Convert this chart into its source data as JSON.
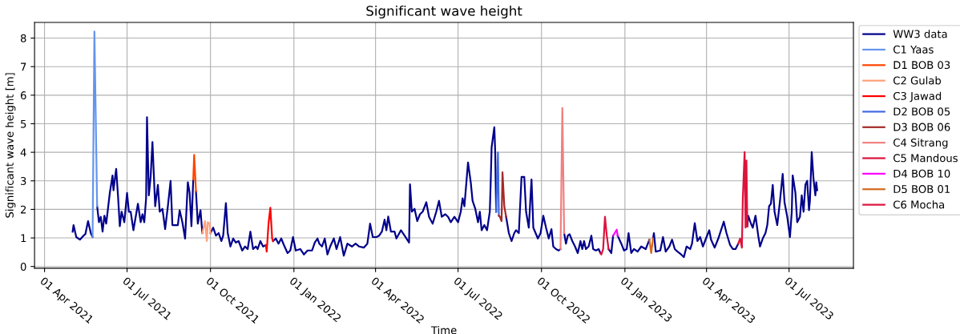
{
  "chart_data": {
    "type": "line",
    "title": "Significant wave height",
    "xlabel": "Time",
    "ylabel": "Significant wave height [m]",
    "xlim": [
      "2021-03-21",
      "2023-09-10"
    ],
    "ylim": [
      -0.06,
      8.55
    ],
    "xticks": [
      {
        "value": "2021-04-01",
        "label": "01 Apr 2021"
      },
      {
        "value": "2021-07-01",
        "label": "01 Jul 2021"
      },
      {
        "value": "2021-10-01",
        "label": "01 Oct 2021"
      },
      {
        "value": "2022-01-01",
        "label": "01 Jan 2022"
      },
      {
        "value": "2022-04-01",
        "label": "01 Apr 2022"
      },
      {
        "value": "2022-07-01",
        "label": "01 Jul 2022"
      },
      {
        "value": "2022-10-01",
        "label": "01 Oct 2022"
      },
      {
        "value": "2023-01-01",
        "label": "01 Jan 2023"
      },
      {
        "value": "2023-04-01",
        "label": "01 Apr 2023"
      },
      {
        "value": "2023-07-01",
        "label": "01 Jul 2023"
      }
    ],
    "yticks": [
      0,
      1,
      2,
      3,
      4,
      5,
      6,
      7,
      8
    ],
    "grid": true,
    "legend": "right",
    "series": [
      {
        "name": "WW3 data",
        "color": "#00008b",
        "x": [
          "2021-05-02",
          "2021-05-03",
          "2021-05-06",
          "2021-05-10",
          "2021-05-14",
          "2021-05-16",
          "2021-05-19",
          "2021-05-22",
          "2021-05-24",
          "2021-05-26",
          "2021-05-29",
          "2021-05-31",
          "2021-06-02",
          "2021-06-04",
          "2021-06-06",
          "2021-06-08",
          "2021-06-12",
          "2021-06-15",
          "2021-06-16",
          "2021-06-19",
          "2021-06-21",
          "2021-06-23",
          "2021-06-25",
          "2021-06-28",
          "2021-07-01",
          "2021-07-03",
          "2021-07-05",
          "2021-07-08",
          "2021-07-11",
          "2021-07-13",
          "2021-07-16",
          "2021-07-18",
          "2021-07-20",
          "2021-07-22",
          "2021-07-23",
          "2021-07-25",
          "2021-07-27",
          "2021-07-29",
          "2021-08-01",
          "2021-08-04",
          "2021-08-06",
          "2021-08-09",
          "2021-08-12",
          "2021-08-15",
          "2021-08-18",
          "2021-08-20",
          "2021-08-23",
          "2021-08-26",
          "2021-08-28",
          "2021-08-31",
          "2021-09-03",
          "2021-09-06",
          "2021-09-08",
          "2021-09-10",
          "2021-09-12",
          "2021-09-13",
          "2021-09-15",
          "2021-09-17",
          "2021-09-20",
          "2021-09-22",
          "2021-09-26",
          "2021-10-01",
          "2021-10-04",
          "2021-10-07",
          "2021-10-10",
          "2021-10-13",
          "2021-10-15",
          "2021-10-18",
          "2021-10-20",
          "2021-10-23",
          "2021-10-26",
          "2021-10-29",
          "2021-11-01",
          "2021-11-05",
          "2021-11-08",
          "2021-11-11",
          "2021-11-14",
          "2021-11-17",
          "2021-11-20",
          "2021-11-22",
          "2021-11-25",
          "2021-11-28",
          "2021-12-01",
          "2021-12-05",
          "2021-12-09",
          "2021-12-12",
          "2021-12-15",
          "2021-12-18",
          "2021-12-21",
          "2021-12-25",
          "2021-12-28",
          "2021-12-31",
          "2022-01-03",
          "2022-01-08",
          "2022-01-12",
          "2022-01-16",
          "2022-01-21",
          "2022-01-24",
          "2022-01-27",
          "2022-01-29",
          "2022-02-01",
          "2022-02-04",
          "2022-02-07",
          "2022-02-10",
          "2022-02-14",
          "2022-02-17",
          "2022-02-21",
          "2022-02-25",
          "2022-03-01",
          "2022-03-06",
          "2022-03-10",
          "2022-03-14",
          "2022-03-19",
          "2022-03-23",
          "2022-03-26",
          "2022-03-29",
          "2022-04-02",
          "2022-04-05",
          "2022-04-08",
          "2022-04-11",
          "2022-04-13",
          "2022-04-15",
          "2022-04-18",
          "2022-04-22",
          "2022-04-24",
          "2022-04-29",
          "2022-05-03",
          "2022-05-08",
          "2022-05-09",
          "2022-05-11",
          "2022-05-14",
          "2022-05-17",
          "2022-05-20",
          "2022-05-23",
          "2022-05-27",
          "2022-05-30",
          "2022-06-03",
          "2022-06-07",
          "2022-06-10",
          "2022-06-13",
          "2022-06-17",
          "2022-06-20",
          "2022-06-23",
          "2022-06-27",
          "2022-07-01",
          "2022-07-04",
          "2022-07-06",
          "2022-07-08",
          "2022-07-12",
          "2022-07-15",
          "2022-07-17",
          "2022-07-20",
          "2022-07-23",
          "2022-07-25",
          "2022-07-27",
          "2022-07-30",
          "2022-08-02",
          "2022-08-05",
          "2022-08-06",
          "2022-08-07",
          "2022-08-10",
          "2022-08-11",
          "2022-08-12",
          "2022-08-16",
          "2022-08-23",
          "2022-08-26",
          "2022-08-29",
          "2022-09-01",
          "2022-09-03",
          "2022-09-06",
          "2022-09-09",
          "2022-09-12",
          "2022-09-14",
          "2022-09-17",
          "2022-09-20",
          "2022-09-22",
          "2022-09-27",
          "2022-09-30",
          "2022-10-03",
          "2022-10-06",
          "2022-10-09",
          "2022-10-12",
          "2022-10-14",
          "2022-10-17",
          "2022-10-20",
          "2022-10-22",
          "2022-10-24",
          "2022-10-26",
          "2022-10-28",
          "2022-10-30",
          "2022-11-01",
          "2022-11-04",
          "2022-11-07",
          "2022-11-10",
          "2022-11-13",
          "2022-11-15",
          "2022-11-17",
          "2022-11-19",
          "2022-11-22",
          "2022-11-25",
          "2022-11-27",
          "2022-11-30",
          "2022-12-03",
          "2022-12-05",
          "2022-12-09",
          "2022-12-14",
          "2022-12-17",
          "2022-12-19",
          "2022-12-21",
          "2022-12-24",
          "2022-12-28",
          "2022-12-31",
          "2023-01-03",
          "2023-01-05",
          "2023-01-08",
          "2023-01-11",
          "2023-01-15",
          "2023-01-19",
          "2023-01-24",
          "2023-01-28",
          "2023-01-30",
          "2023-02-01",
          "2023-02-02",
          "2023-02-04",
          "2023-02-09",
          "2023-02-12",
          "2023-02-15",
          "2023-02-19",
          "2023-02-22",
          "2023-02-25",
          "2023-02-28",
          "2023-03-04",
          "2023-03-07",
          "2023-03-10",
          "2023-03-14",
          "2023-03-16",
          "2023-03-19",
          "2023-03-22",
          "2023-03-25",
          "2023-03-28",
          "2023-04-01",
          "2023-04-04",
          "2023-04-06",
          "2023-04-10",
          "2023-04-14",
          "2023-04-17",
          "2023-04-20",
          "2023-04-23",
          "2023-04-27",
          "2023-04-30",
          "2023-05-03",
          "2023-05-06",
          "2023-05-10",
          "2023-05-16",
          "2023-05-17",
          "2023-05-20",
          "2023-05-22",
          "2023-05-25",
          "2023-05-28",
          "2023-05-30",
          "2023-06-02",
          "2023-06-05",
          "2023-06-07",
          "2023-06-09",
          "2023-06-11",
          "2023-06-13",
          "2023-06-15",
          "2023-06-18",
          "2023-06-21",
          "2023-06-24",
          "2023-06-26",
          "2023-06-29",
          "2023-07-02",
          "2023-07-04",
          "2023-07-05",
          "2023-07-08",
          "2023-07-10",
          "2023-07-13",
          "2023-07-15",
          "2023-07-17",
          "2023-07-19",
          "2023-07-21",
          "2023-07-23",
          "2023-07-24",
          "2023-07-26",
          "2023-07-28",
          "2023-07-30",
          "2023-07-31",
          "2023-08-01"
        ],
        "values": [
          1.22,
          1.45,
          1.03,
          0.94,
          1.08,
          1.13,
          1.59,
          1.17,
          1.03,
          null,
          2.11,
          1.55,
          1.74,
          1.22,
          1.78,
          1.5,
          2.58,
          3.19,
          2.67,
          3.42,
          2.49,
          1.41,
          1.92,
          1.55,
          2.58,
          1.92,
          1.92,
          1.27,
          1.83,
          2.2,
          1.55,
          1.83,
          1.55,
          2.39,
          5.23,
          2.49,
          3.14,
          4.36,
          2.11,
          2.86,
          1.92,
          2.02,
          1.31,
          2.11,
          3.0,
          1.45,
          1.45,
          1.45,
          1.97,
          1.55,
          0.98,
          2.95,
          2.58,
          1.41,
          3.05,
          null,
          2.63,
          1.5,
          1.97,
          1.17,
          null,
          1.17,
          1.36,
          1.08,
          1.17,
          0.89,
          1.08,
          2.22,
          1.17,
          0.7,
          0.98,
          0.84,
          0.89,
          0.56,
          0.7,
          0.61,
          1.22,
          0.61,
          0.7,
          0.61,
          0.89,
          0.7,
          0.75,
          null,
          0.89,
          0.98,
          0.8,
          0.98,
          0.75,
          0.47,
          0.56,
          1.03,
          0.56,
          0.61,
          0.42,
          0.56,
          0.56,
          0.84,
          0.98,
          0.8,
          0.7,
          0.98,
          0.42,
          0.7,
          0.98,
          0.61,
          1.03,
          0.38,
          0.8,
          0.7,
          0.8,
          0.7,
          0.66,
          0.8,
          1.5,
          1.03,
          1.03,
          1.08,
          1.22,
          1.64,
          1.27,
          1.75,
          1.22,
          1.22,
          0.98,
          1.27,
          1.08,
          0.84,
          2.88,
          1.92,
          2.02,
          1.59,
          1.83,
          1.92,
          2.25,
          1.74,
          1.5,
          1.92,
          2.3,
          1.74,
          1.83,
          1.74,
          1.55,
          1.74,
          1.55,
          1.92,
          2.39,
          2.11,
          3.64,
          2.95,
          2.3,
          2.02,
          1.55,
          1.92,
          1.27,
          1.45,
          1.27,
          1.92,
          2.95,
          4.17,
          4.88,
          3.99,
          1.92,
          null,
          1.74,
          1.17,
          0.89,
          1.17,
          1.27,
          1.17,
          3.14,
          3.14,
          1.92,
          1.36,
          3.05,
          1.36,
          0.98,
          1.17,
          1.78,
          1.36,
          0.98,
          1.31,
          0.7,
          0.61,
          0.56,
          0.61,
          null,
          1.17,
          0.8,
          1.08,
          1.13,
          0.89,
          0.7,
          0.47,
          0.89,
          0.61,
          0.89,
          0.61,
          0.7,
          1.08,
          0.61,
          0.56,
          0.61,
          0.47,
          null,
          0.61,
          0.47,
          1.08,
          null,
          1.08,
          0.8,
          0.56,
          0.61,
          1.17,
          0.47,
          0.61,
          0.52,
          0.7,
          0.61,
          0.94,
          null,
          0.98,
          1.17,
          0.52,
          0.56,
          1.03,
          0.52,
          0.7,
          0.94,
          0.61,
          0.52,
          0.42,
          0.33,
          0.7,
          0.61,
          0.8,
          1.52,
          0.89,
          1.03,
          0.7,
          1.03,
          1.27,
          0.94,
          0.66,
          0.98,
          1.27,
          1.57,
          1.17,
          0.75,
          0.61,
          0.61,
          0.8,
          null,
          1.41,
          1.78,
          1.5,
          1.36,
          1.78,
          1.08,
          0.7,
          0.98,
          1.17,
          1.45,
          2.11,
          2.2,
          2.86,
          1.92,
          1.45,
          2.3,
          3.24,
          2.25,
          1.74,
          1.03,
          1.92,
          3.19,
          2.58,
          1.55,
          1.74,
          2.49,
          1.92,
          2.86,
          3.0,
          1.97,
          2.3,
          4.01,
          3.05,
          2.49,
          2.95,
          2.67
        ]
      },
      {
        "name": "C1 Yaas",
        "color": "#6495ed",
        "x": [
          "2021-05-24",
          "2021-05-26",
          "2021-05-29"
        ],
        "values": [
          1.03,
          8.23,
          2.11
        ]
      },
      {
        "name": "D1 BOB 03",
        "color": "#ff4500",
        "x": [
          "2021-09-12",
          "2021-09-13",
          "2021-09-15"
        ],
        "values": [
          3.05,
          3.91,
          2.63
        ]
      },
      {
        "name": "C2 Gulab",
        "color": "#ffa07a",
        "x": [
          "2021-09-22",
          "2021-09-25",
          "2021-09-27",
          "2021-09-28",
          "2021-09-30",
          "2021-10-01"
        ],
        "values": [
          1.17,
          1.59,
          0.89,
          1.55,
          1.5,
          1.17
        ]
      },
      {
        "name": "C3 Jawad",
        "color": "#ff0000",
        "x": [
          "2021-12-01",
          "2021-12-02",
          "2021-12-04",
          "2021-12-06",
          "2021-12-08",
          "2021-12-09"
        ],
        "values": [
          0.75,
          0.52,
          1.5,
          2.06,
          0.98,
          0.89
        ]
      },
      {
        "name": "D2 BOB 05",
        "color": "#4169e1",
        "x": [
          "2022-08-12",
          "2022-08-14",
          "2022-08-15"
        ],
        "values": [
          1.92,
          3.99,
          1.78
        ]
      },
      {
        "name": "D3 BOB 06",
        "color": "#a52a2a",
        "x": [
          "2022-08-15",
          "2022-08-16",
          "2022-08-18",
          "2022-08-19",
          "2022-08-21",
          "2022-08-23"
        ],
        "values": [
          1.78,
          1.75,
          1.59,
          3.3,
          2.11,
          1.74
        ]
      },
      {
        "name": "C4 Sitrang",
        "color": "#f08080",
        "x": [
          "2022-10-22",
          "2022-10-24",
          "2022-10-26"
        ],
        "values": [
          0.61,
          5.55,
          1.17
        ]
      },
      {
        "name": "C5 Mandous",
        "color": "#dc143c",
        "x": [
          "2022-12-05",
          "2022-12-06",
          "2022-12-08",
          "2022-12-10",
          "2022-12-12",
          "2022-12-14"
        ],
        "values": [
          0.47,
          0.42,
          0.61,
          1.74,
          1.08,
          0.61
        ]
      },
      {
        "name": "D4 BOB 10",
        "color": "#ff00ff",
        "x": [
          "2022-12-19",
          "2022-12-23",
          "2022-12-24"
        ],
        "values": [
          1.08,
          1.29,
          1.08
        ]
      },
      {
        "name": "D5 BOB 01",
        "color": "#d2691e",
        "x": [
          "2023-01-28",
          "2023-01-30",
          "2023-02-01"
        ],
        "values": [
          0.94,
          0.47,
          0.98
        ]
      },
      {
        "name": "C6 Mocha",
        "color": "#dc143c",
        "x": [
          "2023-05-06",
          "2023-05-08",
          "2023-05-10",
          "2023-05-11",
          "2023-05-13",
          "2023-05-14",
          "2023-05-15",
          "2023-05-16"
        ],
        "values": [
          0.8,
          0.98,
          0.66,
          2.39,
          4.01,
          1.36,
          3.71,
          1.41
        ]
      }
    ]
  }
}
